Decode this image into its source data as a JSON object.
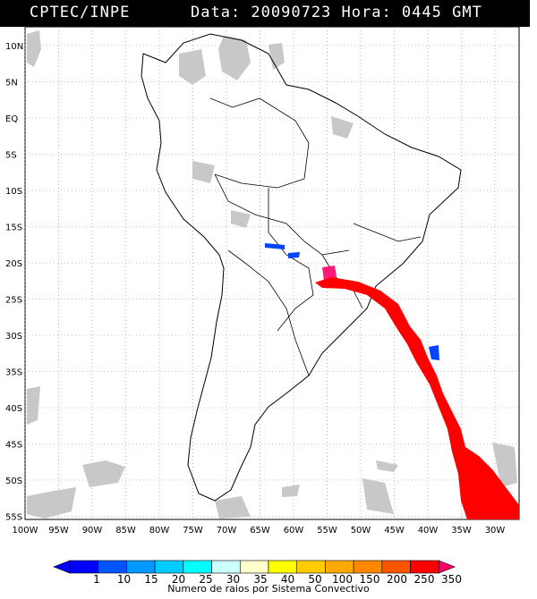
{
  "header": {
    "source": "CPTEC/INPE",
    "meta": "Data: 20090723 Hora: 0445 GMT"
  },
  "axes": {
    "lat_ticks": [
      "10N",
      "5N",
      "EQ",
      "5S",
      "10S",
      "15S",
      "20S",
      "25S",
      "30S",
      "35S",
      "40S",
      "45S",
      "50S",
      "55S"
    ],
    "lon_ticks": [
      "100W",
      "95W",
      "90W",
      "85W",
      "80W",
      "75W",
      "70W",
      "65W",
      "60W",
      "55W",
      "50W",
      "45W",
      "40W",
      "35W",
      "30W"
    ]
  },
  "legend": {
    "values": [
      "1",
      "10",
      "15",
      "20",
      "25",
      "30",
      "35",
      "40",
      "50",
      "100",
      "150",
      "200",
      "250",
      "350"
    ],
    "colors": [
      "#0000ff",
      "#0055ff",
      "#0099ff",
      "#00ccff",
      "#00ffff",
      "#ccffff",
      "#ffffcc",
      "#ffff00",
      "#ffcc00",
      "#ffaa00",
      "#ff8800",
      "#ff5500",
      "#ff0000",
      "#ff0066"
    ],
    "caption": "Numero de raios por Sistema Convectivo"
  }
}
